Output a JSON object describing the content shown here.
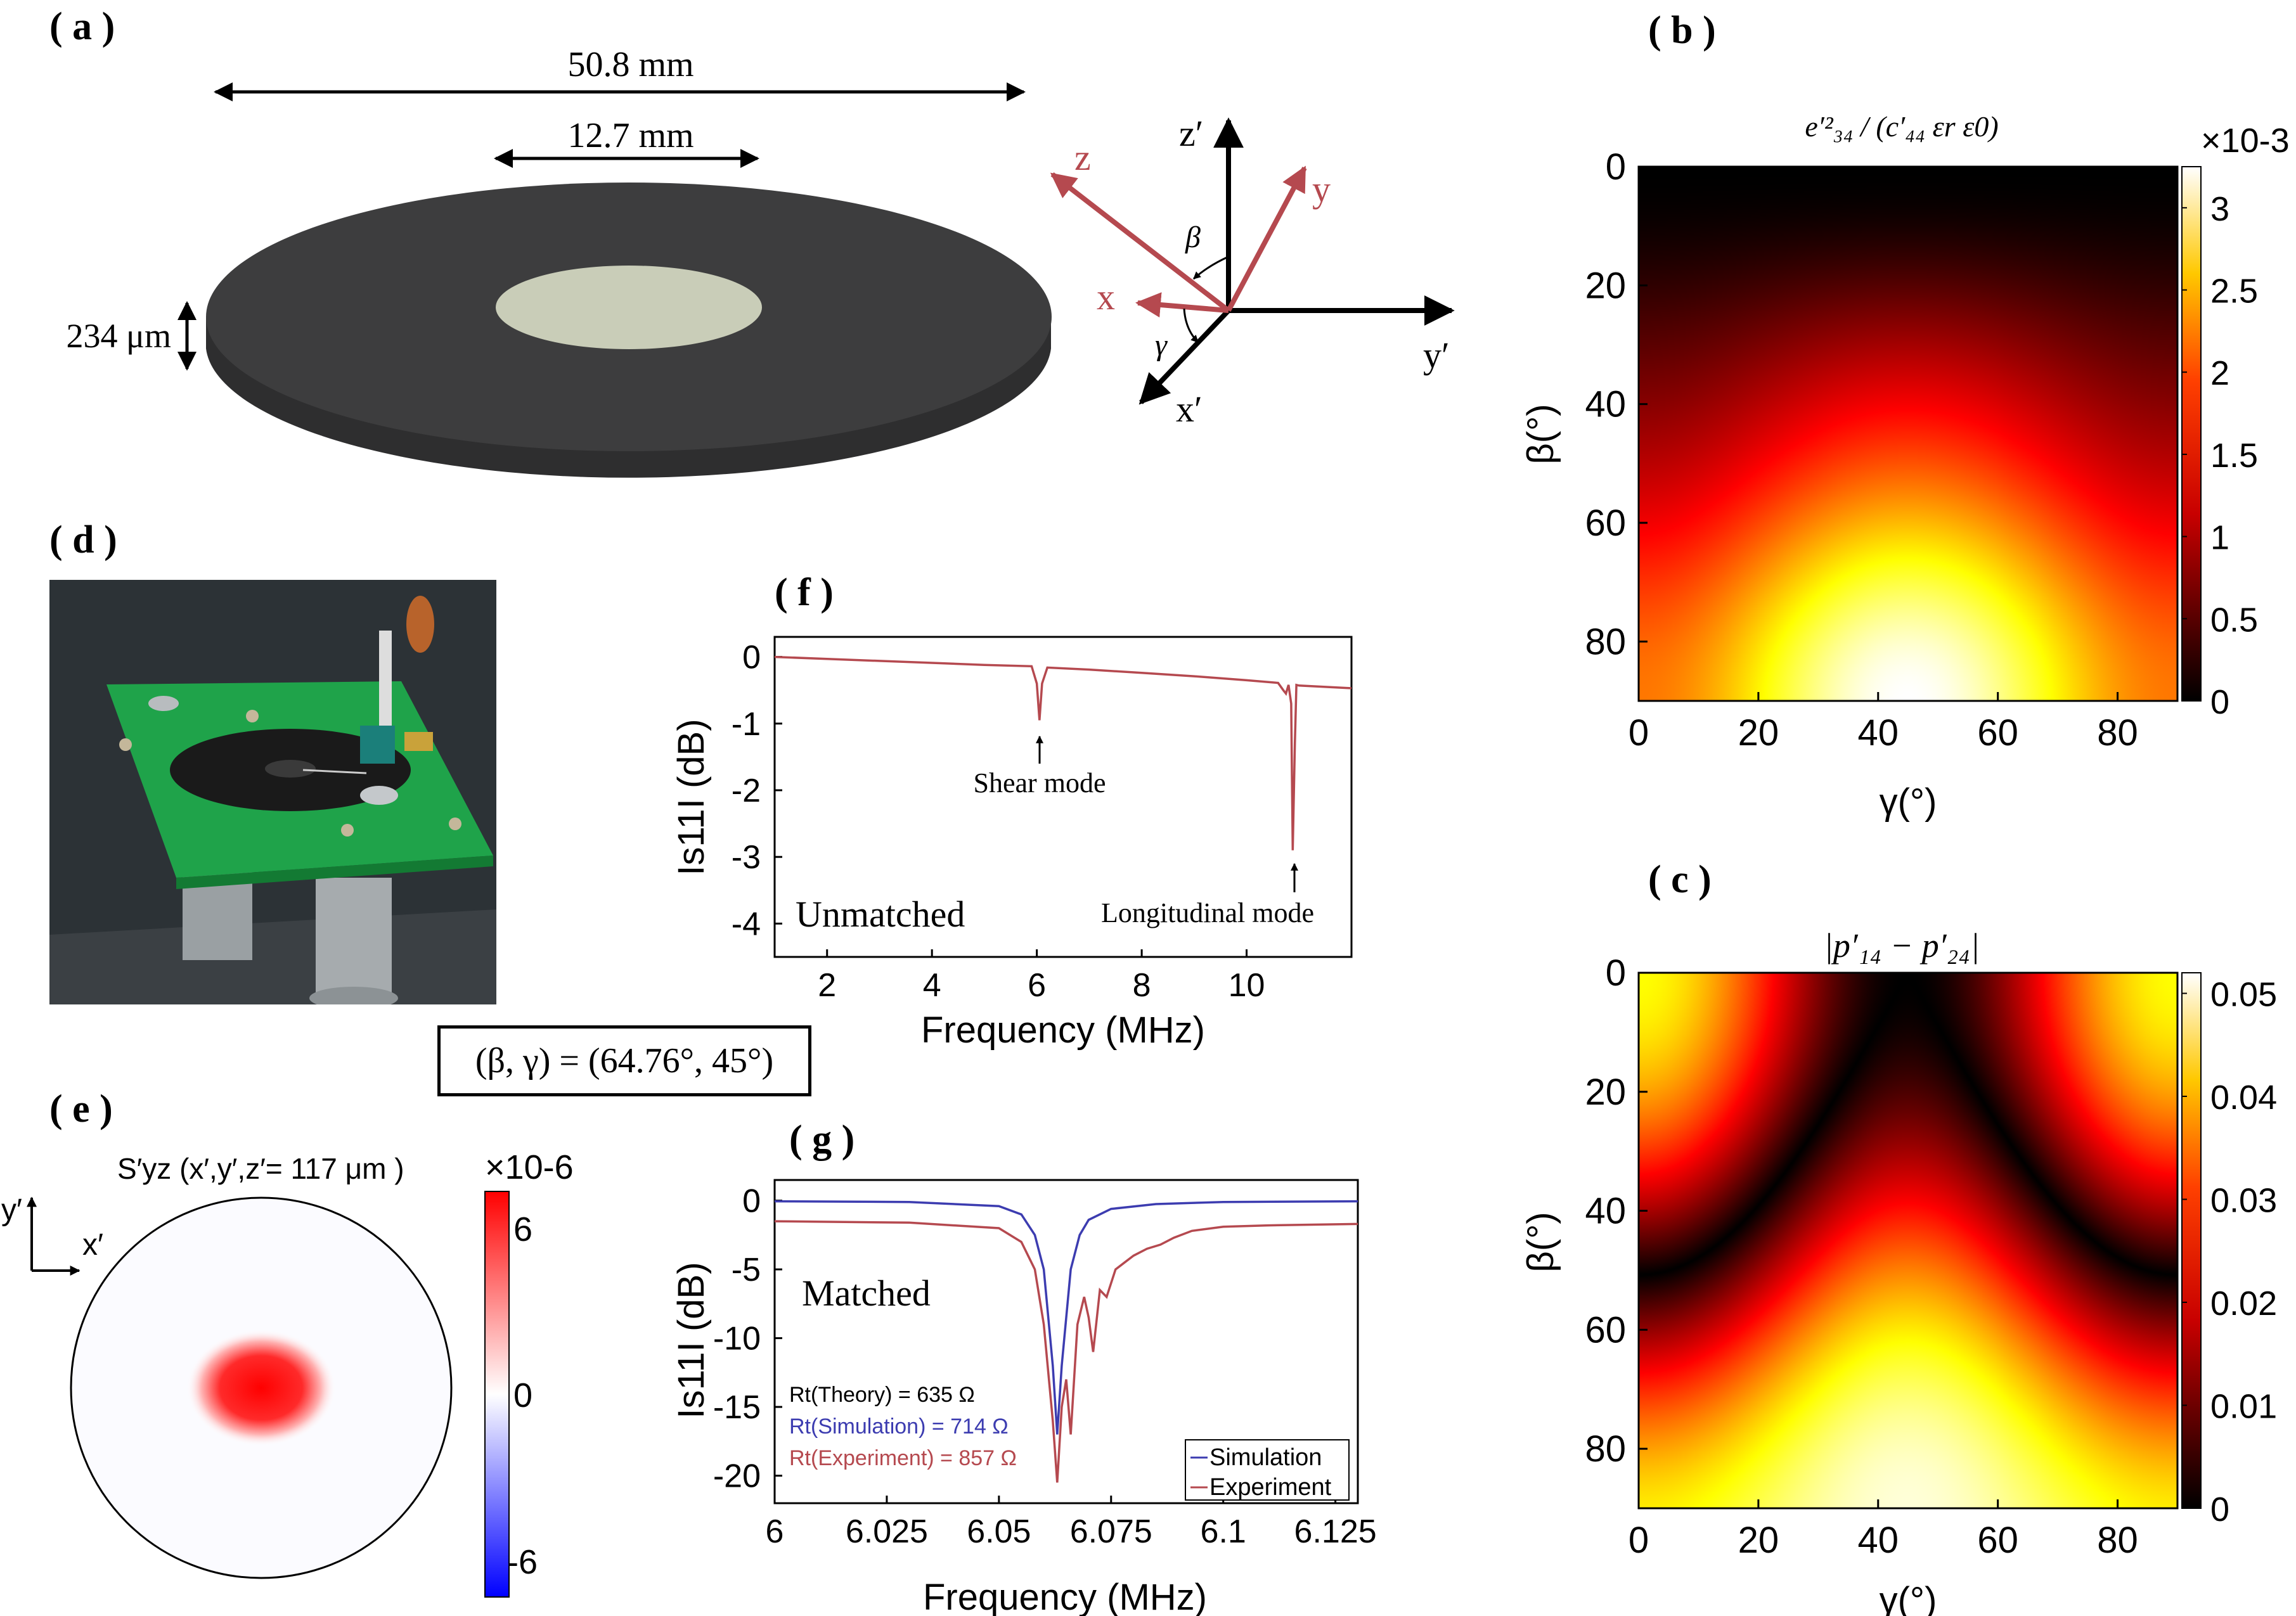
{
  "panels": {
    "a": "( a )",
    "b": "( b )",
    "c": "( c )",
    "d": "( d )",
    "e": "( e )",
    "f": "( f )",
    "g": "( g )"
  },
  "panel_a": {
    "outer_dim": "50.8 mm",
    "inner_dim": "12.7 mm",
    "thickness": "234 μm",
    "axes": {
      "z_prime": "z′",
      "y_prime": "y′",
      "x_prime": "x′",
      "z": "z",
      "y": "y",
      "x": "x",
      "beta": "β",
      "gamma": "γ"
    },
    "colors": {
      "disk": "#3d3d3e",
      "electrode": "#c9cdb8",
      "rotated_axes": "#b5494f"
    }
  },
  "panel_d": {
    "photo_icon": "transducer-photo"
  },
  "equation_box": "(β, γ) = (64.76°, 45°)",
  "panel_e": {
    "title": "S′yz (x′,y′,z′=  117 μm )",
    "axis_y": "y′",
    "axis_x": "x′",
    "colorbar_exponent": "×10-6",
    "colorbar_ticks": [
      "6",
      "0",
      "-6"
    ]
  },
  "chart_data": [
    {
      "id": "b",
      "type": "heatmap",
      "title": "e′²₃₄ / (c′₄₄ εr ε0)",
      "xlabel": "γ(°)",
      "ylabel": "β(°)",
      "xticks": [
        "0",
        "20",
        "40",
        "60",
        "80"
      ],
      "yticks": [
        "0",
        "20",
        "40",
        "60",
        "80"
      ],
      "xlim": [
        0,
        90
      ],
      "ylim": [
        0,
        90
      ],
      "colorbar_exponent": "×10-3",
      "colorbar_ticks": [
        "3",
        "2.5",
        "2",
        "1.5",
        "1",
        "0.5",
        "0"
      ],
      "colorbar_range": [
        0,
        0.00325
      ],
      "colormap": "hot"
    },
    {
      "id": "c",
      "type": "heatmap",
      "title": "|p′₁₄ − p′₂₄|",
      "xlabel": "γ(°)",
      "ylabel": "β(°)",
      "xticks": [
        "0",
        "20",
        "40",
        "60",
        "80"
      ],
      "yticks": [
        "0",
        "20",
        "40",
        "60",
        "80"
      ],
      "xlim": [
        0,
        90
      ],
      "ylim": [
        0,
        90
      ],
      "colorbar_ticks": [
        "0.05",
        "0.04",
        "0.03",
        "0.02",
        "0.01",
        "0"
      ],
      "colorbar_range": [
        0,
        0.052
      ],
      "colormap": "hot"
    },
    {
      "id": "f",
      "type": "line",
      "xlabel": "Frequency (MHz)",
      "ylabel": "Is11I (dB)",
      "xticks": [
        "2",
        "4",
        "6",
        "8",
        "10"
      ],
      "yticks": [
        "0",
        "-1",
        "-2",
        "-3",
        "-4"
      ],
      "xlim": [
        1,
        12
      ],
      "ylim": [
        -4.5,
        0.3
      ],
      "annotations": [
        "Shear mode",
        "Longitudinal mode"
      ],
      "label": "Unmatched",
      "series": [
        {
          "color": "#b5494f",
          "x": [
            1,
            2,
            3,
            4,
            5,
            5.9,
            6.0,
            6.05,
            6.1,
            6.2,
            7,
            8,
            9,
            10,
            10.6,
            10.7,
            10.75,
            10.8,
            10.85,
            10.88,
            10.92,
            10.95,
            11,
            11.5,
            12
          ],
          "y": [
            0,
            -0.03,
            -0.06,
            -0.09,
            -0.12,
            -0.14,
            -0.4,
            -0.95,
            -0.4,
            -0.16,
            -0.19,
            -0.24,
            -0.29,
            -0.35,
            -0.39,
            -0.5,
            -0.55,
            -0.42,
            -0.7,
            -2.9,
            -1.3,
            -0.42,
            -0.43,
            -0.45,
            -0.47
          ]
        }
      ]
    },
    {
      "id": "g",
      "type": "line",
      "xlabel": "Frequency (MHz)",
      "ylabel": "Is11I (dB)",
      "xticks": [
        "6",
        "6.025",
        "6.05",
        "6.075",
        "6.1",
        "6.125"
      ],
      "yticks": [
        "0",
        "-5",
        "-10",
        "-15",
        "-20"
      ],
      "xlim": [
        6,
        6.13
      ],
      "ylim": [
        -22,
        1.5
      ],
      "label": "Matched",
      "rt_labels": [
        "Rt(Theory) = 635 Ω",
        "Rt(Simulation) = 714 Ω",
        "Rt(Experiment) = 857 Ω"
      ],
      "series": [
        {
          "name": "Simulation",
          "color": "#3c3cb0",
          "x": [
            6,
            6.03,
            6.05,
            6.055,
            6.058,
            6.06,
            6.062,
            6.063,
            6.064,
            6.066,
            6.068,
            6.07,
            6.075,
            6.085,
            6.1,
            6.13
          ],
          "y": [
            -0.05,
            -0.1,
            -0.4,
            -1,
            -2.5,
            -5,
            -12,
            -17,
            -12,
            -5,
            -2.5,
            -1.4,
            -0.6,
            -0.25,
            -0.1,
            -0.05
          ]
        },
        {
          "name": "Experiment",
          "color": "#b5494f",
          "x": [
            6,
            6.03,
            6.05,
            6.055,
            6.058,
            6.06,
            6.062,
            6.063,
            6.064,
            6.065,
            6.066,
            6.0675,
            6.069,
            6.07,
            6.071,
            6.0725,
            6.074,
            6.076,
            6.078,
            6.08,
            6.083,
            6.086,
            6.089,
            6.093,
            6.1,
            6.11,
            6.13
          ],
          "y": [
            -1.5,
            -1.6,
            -2,
            -3,
            -5,
            -9,
            -16,
            -20.5,
            -15,
            -13,
            -17,
            -9,
            -7,
            -8.5,
            -11,
            -6.5,
            -7,
            -5,
            -4.5,
            -4,
            -3.5,
            -3.2,
            -2.7,
            -2.2,
            -1.9,
            -1.8,
            -1.7
          ]
        }
      ]
    }
  ]
}
